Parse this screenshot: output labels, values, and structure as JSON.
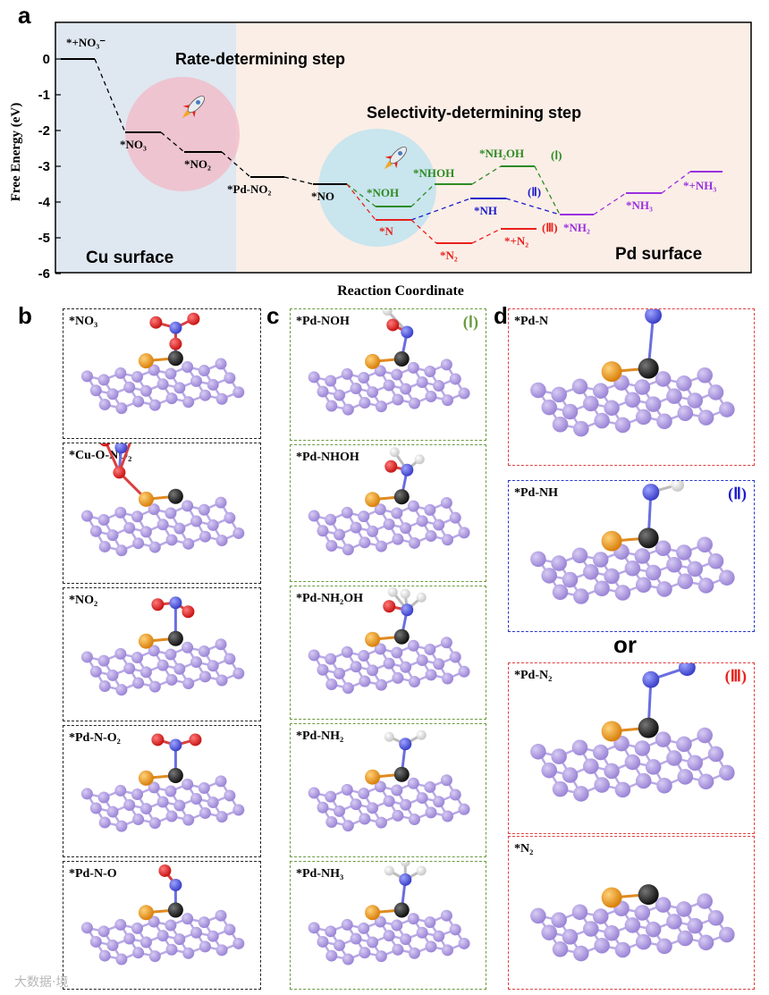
{
  "panel_a": {
    "letter": "a",
    "y_axis_label": "Free Energy (eV)",
    "x_axis_label": "Reaction Coordinate",
    "y_ticks": [
      "0",
      "-1",
      "-2",
      "-3",
      "-4",
      "-5",
      "-6"
    ],
    "region_left_label": "Cu surface",
    "region_right_label": "Pd surface",
    "rate_step_label": "Rate-determining step",
    "selectivity_step_label": "Selectivity-determining step",
    "colors": {
      "black": "#000000",
      "green": "#2e8b23",
      "blue": "#1c1ccc",
      "red": "#e8221c",
      "purple": "#9b30e0",
      "cu_bg": "#dfe7f0",
      "pd_bg": "#fbeee7",
      "pink_circle": "#f2b8c6",
      "cyan_circle": "#bfe3ee"
    },
    "levels": {
      "no3_initial": {
        "label": "*+NO₃⁻",
        "energy": 0
      },
      "no3": {
        "label": "*NO₃",
        "energy": -2.05
      },
      "no2": {
        "label": "*NO₂",
        "energy": -2.6
      },
      "pd_no2": {
        "label": "*Pd-NO₂",
        "energy": -3.3
      },
      "no": {
        "label": "*NO",
        "energy": -3.5
      },
      "noh": {
        "label": "*NOH",
        "energy": -4.1
      },
      "nhoh": {
        "label": "*NHOH",
        "energy": -3.5
      },
      "nh2oh": {
        "label": "*NH₂OH",
        "energy": -3.0
      },
      "nh": {
        "label": "*NH",
        "energy": -3.9
      },
      "n": {
        "label": "*N",
        "energy": -4.5
      },
      "n2": {
        "label": "*N₂",
        "energy": -5.15
      },
      "plus_n2": {
        "label": "*+N₂",
        "energy": -4.7
      },
      "nh2": {
        "label": "*NH₂",
        "energy": -4.3
      },
      "nh3": {
        "label": "*NH₃",
        "energy": -3.75
      },
      "plus_nh3": {
        "label": "*+NH₃",
        "energy": -3.15
      }
    },
    "path_labels": {
      "I": "(Ⅰ)",
      "II": "(Ⅱ)",
      "III": "(Ⅲ)"
    }
  },
  "panel_b": {
    "letter": "b",
    "boxes": [
      {
        "label": "*NO₃"
      },
      {
        "label": "*Cu-O-NO₂"
      },
      {
        "label": "*NO₂"
      },
      {
        "label": "*Pd-N-O₂"
      },
      {
        "label": "*Pd-N-O"
      }
    ]
  },
  "panel_c": {
    "letter": "c",
    "roman": "(Ⅰ)",
    "boxes": [
      {
        "label": "*Pd-NOH"
      },
      {
        "label": "*Pd-NHOH"
      },
      {
        "label": "*Pd-NH₂OH"
      },
      {
        "label": "*Pd-NH₂"
      },
      {
        "label": "*Pd-NH₃"
      }
    ]
  },
  "panel_d": {
    "letter": "d",
    "or_text": "or",
    "boxes": [
      {
        "label": "*Pd-N",
        "roman": ""
      },
      {
        "label": "*Pd-NH",
        "roman": "(Ⅱ)"
      },
      {
        "label": "*Pd-N₂",
        "roman": "(Ⅲ)"
      },
      {
        "label": "*N₂",
        "roman": ""
      }
    ]
  },
  "watermark": "大数据·境"
}
